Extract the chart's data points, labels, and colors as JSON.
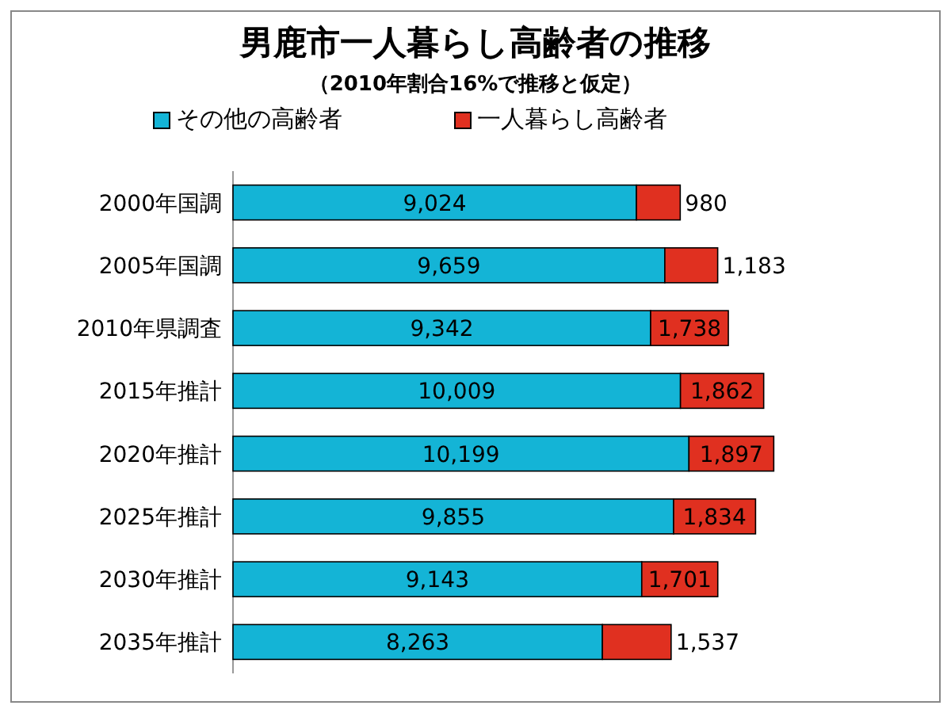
{
  "chart_data": {
    "type": "bar",
    "orientation": "horizontal",
    "stacked": true,
    "title": "男鹿市一人暮らし高齢者の推移",
    "subtitle": "（2010年割合16%で推移と仮定）",
    "legend": "top",
    "categories": [
      "2000年国調",
      "2005年国調",
      "2010年県調査",
      "2015年推計",
      "2020年推計",
      "2025年推計",
      "2030年推計",
      "2035年推計"
    ],
    "series": [
      {
        "name": "その他の高齢者",
        "color": "#14b4d6",
        "values": [
          9024,
          9659,
          9342,
          10009,
          10199,
          9855,
          9143,
          8263
        ],
        "value_labels": [
          "9,024",
          "9,659",
          "9,342",
          "10,009",
          "10,199",
          "9,855",
          "9,143",
          "8,263"
        ]
      },
      {
        "name": "一人暮らし高齢者",
        "color": "#e03020",
        "values": [
          980,
          1183,
          1738,
          1862,
          1897,
          1834,
          1701,
          1537
        ],
        "value_labels": [
          "980",
          "1,183",
          "1,738",
          "1,862",
          "1,897",
          "1,834",
          "1,701",
          "1,537"
        ]
      }
    ]
  }
}
